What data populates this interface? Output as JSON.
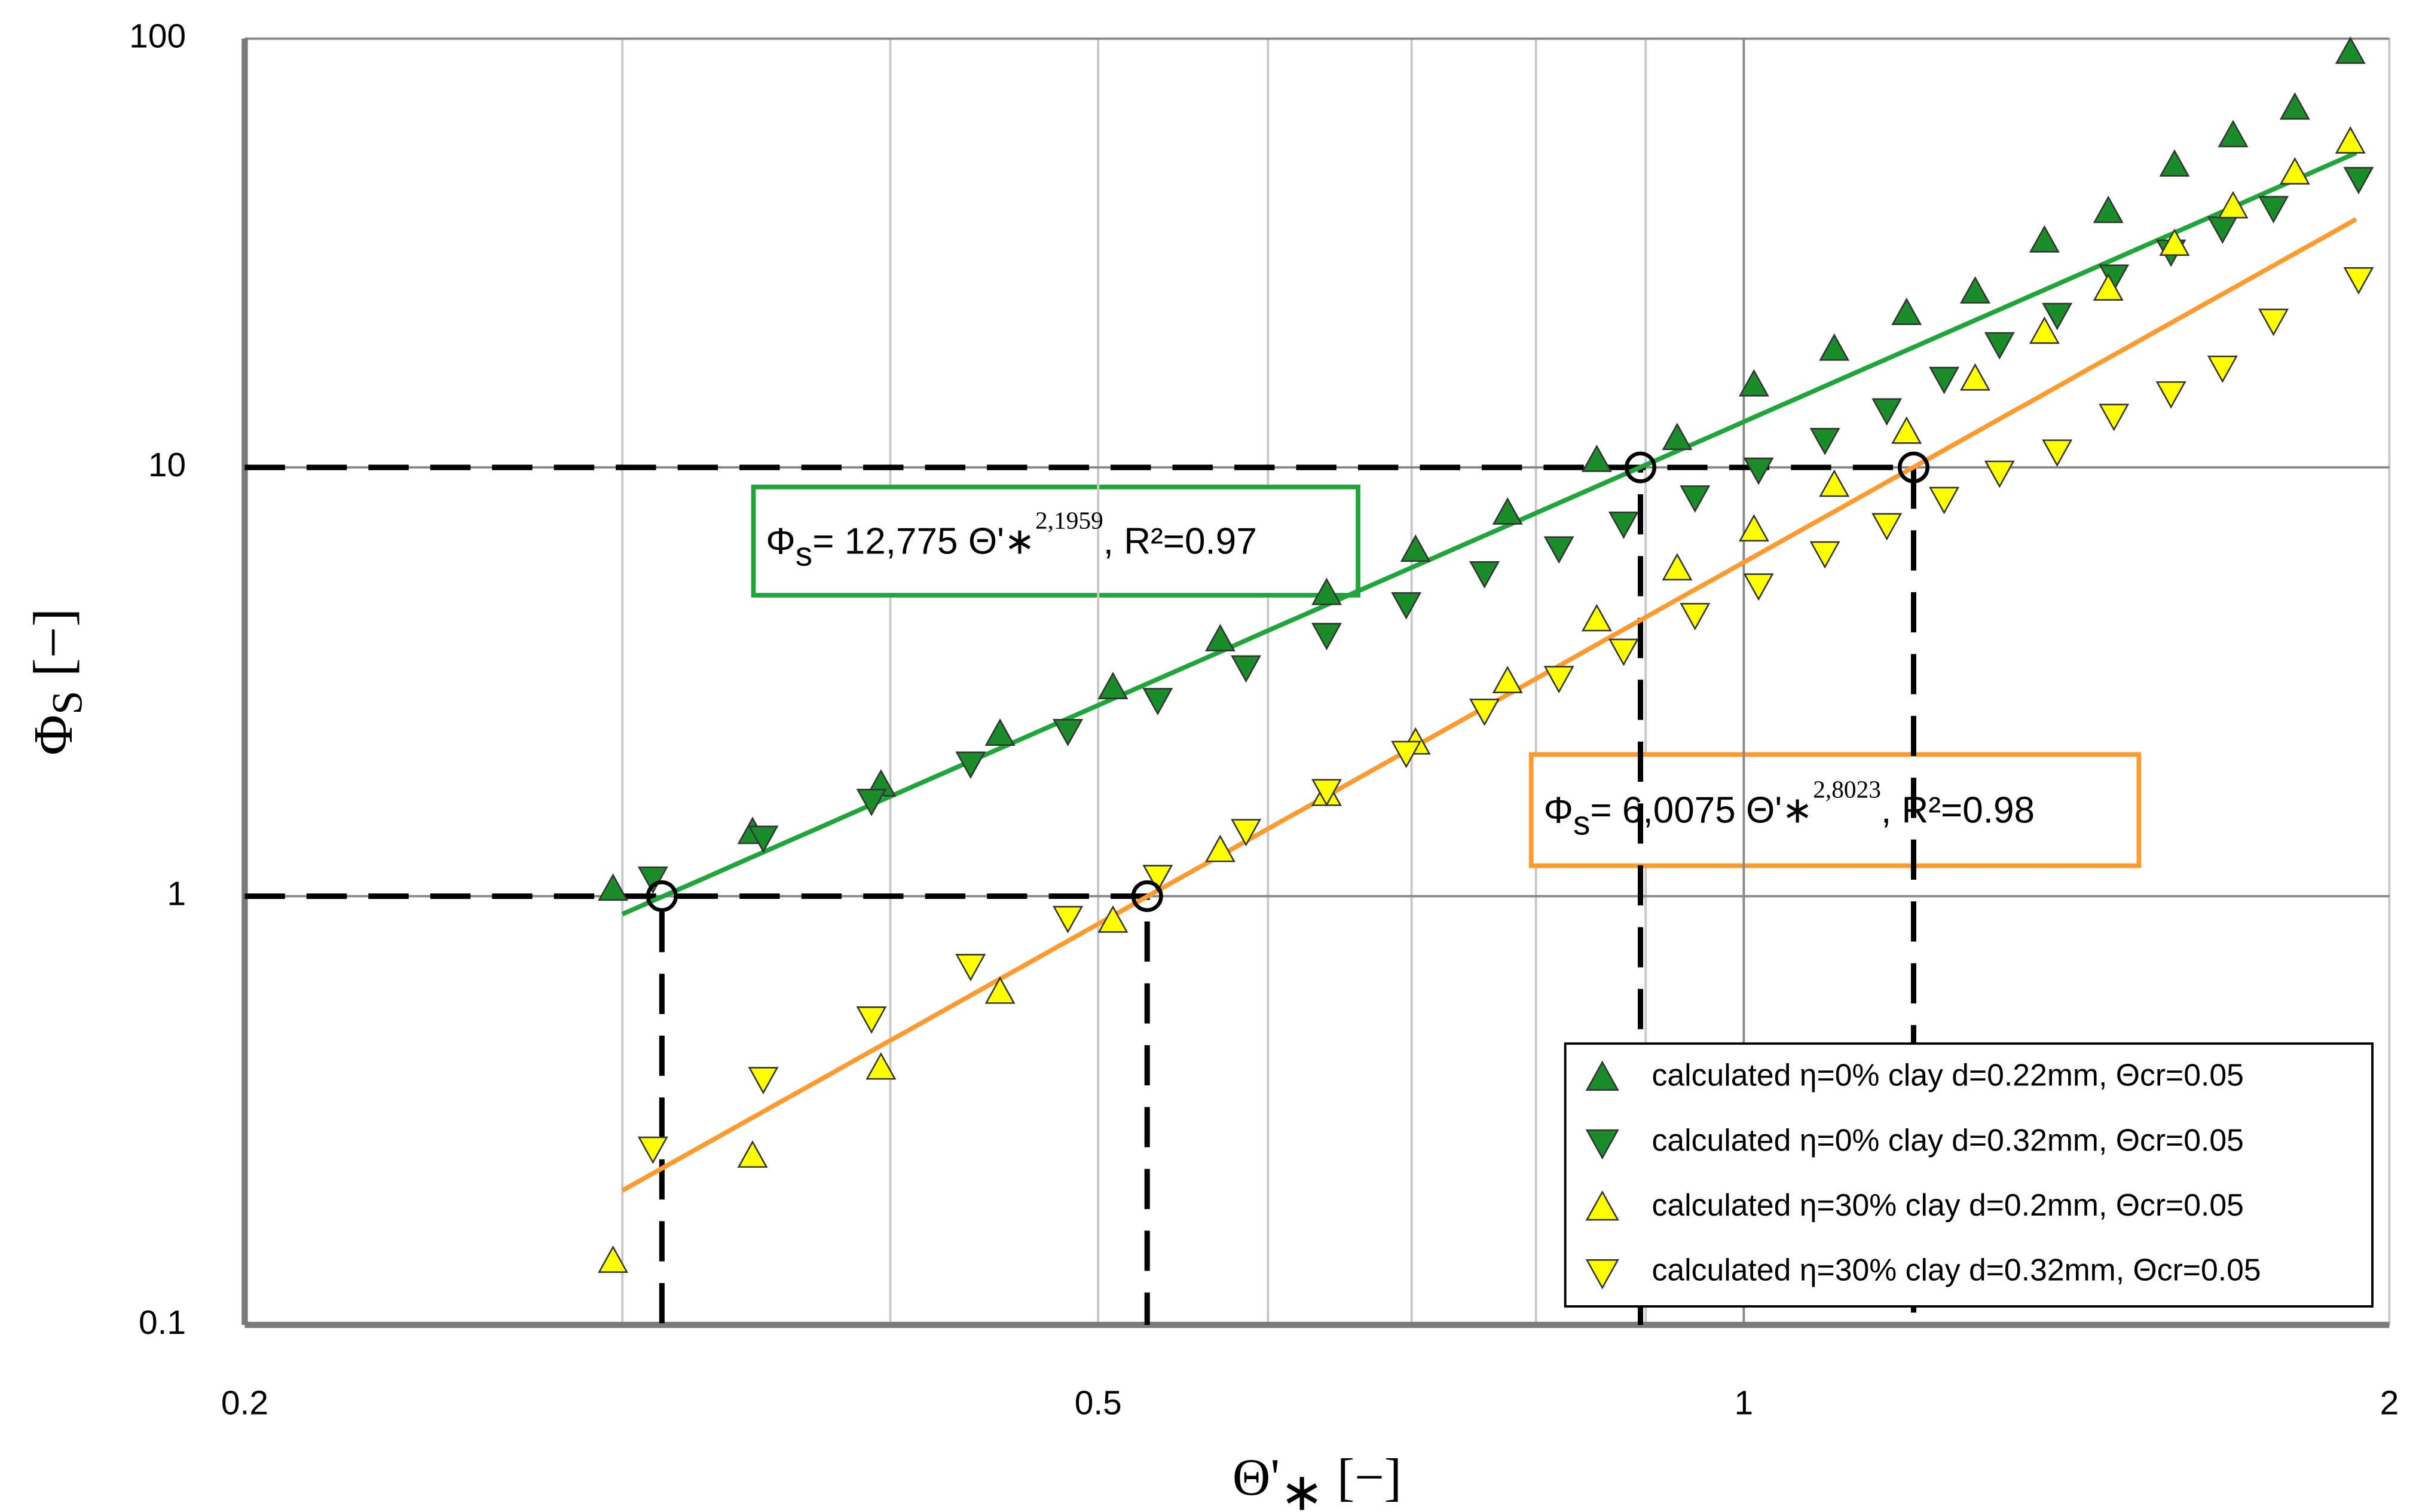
{
  "chart_data": {
    "type": "scatter",
    "log_x": true,
    "log_y": true,
    "xlabel": {
      "main": "Θ'",
      "sub": "∗",
      "unit": " [−]"
    },
    "ylabel": {
      "main": "Φ",
      "sub": "S",
      "unit": " [−]"
    },
    "xlim": [
      0.2,
      2
    ],
    "ylim": [
      0.1,
      100
    ],
    "xticks": [
      0.2,
      0.5,
      1,
      2
    ],
    "yticks": [
      0.1,
      1,
      10,
      100
    ],
    "x_minor_grid": [
      0.3,
      0.4,
      0.6,
      0.7,
      0.8,
      0.9
    ],
    "legend": "lower right",
    "series": [
      {
        "name": "calculated η=0% clay d=0.22mm, Θcr=0.05",
        "marker": "up",
        "color": "#1a8c2a",
        "x": [
          0.297,
          0.345,
          0.396,
          0.45,
          0.508,
          0.57,
          0.639,
          0.703,
          0.776,
          0.854,
          0.931,
          1.011,
          1.102,
          1.191,
          1.282,
          1.381,
          1.479,
          1.588,
          1.691,
          1.807,
          1.918
        ],
        "values": [
          1.04,
          1.41,
          1.82,
          2.39,
          3.07,
          3.97,
          5.09,
          6.42,
          7.84,
          10.4,
          11.7,
          15.6,
          18.9,
          22.9,
          25.7,
          33.8,
          39.6,
          50.8,
          59.5,
          69,
          93.1
        ]
      },
      {
        "name": "calculated η=0% clay d=0.32mm, Θcr=0.05",
        "marker": "down",
        "color": "#1a8c2a",
        "x": [
          0.31,
          0.349,
          0.392,
          0.436,
          0.484,
          0.533,
          0.586,
          0.639,
          0.696,
          0.757,
          0.82,
          0.879,
          0.949,
          1.016,
          1.091,
          1.166,
          1.24,
          1.316,
          1.4,
          1.488,
          1.582,
          1.672,
          1.766,
          1.935
        ],
        "values": [
          1.1,
          1.37,
          1.67,
          2.04,
          2.43,
          2.87,
          3.42,
          4.07,
          4.8,
          5.67,
          6.48,
          7.4,
          8.52,
          9.89,
          11.6,
          13.6,
          16.1,
          19.4,
          22.7,
          27.9,
          31.9,
          36.1,
          40.3,
          47.1
        ]
      },
      {
        "name": "calculated η=30% clay d=0.2mm, Θcr=0.05",
        "marker": "up",
        "color": "#ffff00",
        "x": [
          0.297,
          0.345,
          0.396,
          0.45,
          0.508,
          0.57,
          0.639,
          0.703,
          0.776,
          0.854,
          0.931,
          1.011,
          1.102,
          1.191,
          1.282,
          1.381,
          1.479,
          1.588,
          1.691,
          1.807,
          1.918
        ],
        "values": [
          0.141,
          0.248,
          0.398,
          0.598,
          0.876,
          1.28,
          1.73,
          2.28,
          3.17,
          4.42,
          5.81,
          7.16,
          9.1,
          12.1,
          16.1,
          20.7,
          26.1,
          33.2,
          40.6,
          48.7,
          57.5
        ]
      },
      {
        "name": "calculated η=30% clay d=0.32mm, Θcr=0.05",
        "marker": "down",
        "color": "#ffff00",
        "x": [
          0.31,
          0.349,
          0.392,
          0.436,
          0.484,
          0.533,
          0.586,
          0.639,
          0.696,
          0.757,
          0.82,
          0.879,
          0.949,
          1.016,
          1.091,
          1.166,
          1.24,
          1.316,
          1.4,
          1.488,
          1.582,
          1.672,
          1.766,
          1.935
        ],
        "values": [
          0.258,
          0.375,
          0.519,
          0.688,
          0.89,
          1.11,
          1.42,
          1.76,
          2.16,
          2.71,
          3.23,
          3.74,
          4.53,
          5.31,
          6.31,
          7.34,
          8.45,
          9.73,
          10.9,
          13.2,
          14.9,
          17.1,
          22,
          27.5
        ]
      }
    ],
    "fits": [
      {
        "coefficient": 12.775,
        "exponent": 2.1959,
        "xlim": [
          0.3,
          1.93
        ],
        "color": "#1fa53a",
        "label": {
          "a": "Φ",
          "b": "s",
          "c": "= 12,775 Θ'∗",
          "d": "2,1959",
          "e": ", R²=0.97"
        }
      },
      {
        "coefficient": 6.0075,
        "exponent": 2.8023,
        "xlim": [
          0.3,
          1.93
        ],
        "color": "#ff9a2e",
        "label": {
          "a": "Φ",
          "b": "s",
          "c": "= 6,0075 Θ'∗",
          "d": "2,8023",
          "e": ", R²=0.98"
        }
      }
    ],
    "reference_points": [
      {
        "x": 0.313,
        "y": 1
      },
      {
        "x": 0.527,
        "y": 1
      },
      {
        "x": 0.895,
        "y": 10
      },
      {
        "x": 1.2,
        "y": 10
      }
    ]
  }
}
